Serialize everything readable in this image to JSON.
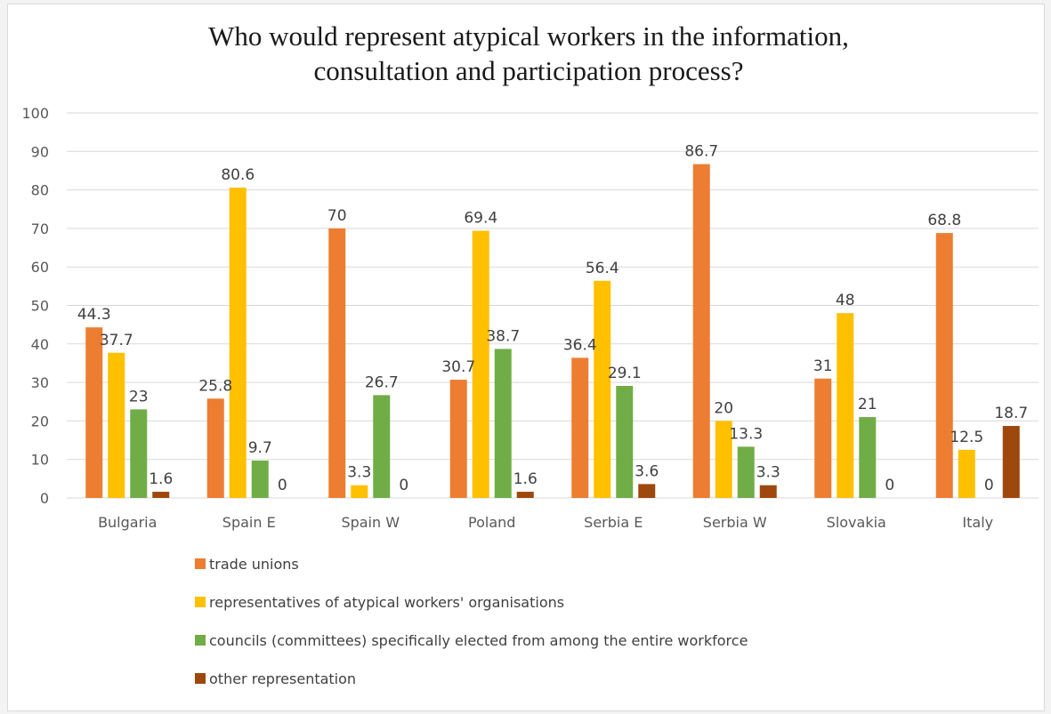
{
  "chart_data": {
    "type": "bar",
    "title": "Who would represent atypical workers in the information, consultation and participation process?",
    "title_lines": [
      "Who would represent atypical workers in the information,",
      "consultation and participation process?"
    ],
    "categories": [
      "Bulgaria",
      "Spain E",
      "Spain W",
      "Poland",
      "Serbia E",
      "Serbia W",
      "Slovakia",
      "Italy"
    ],
    "series": [
      {
        "name": "trade unions",
        "color": "#ed7d31",
        "values": [
          44.3,
          25.8,
          70,
          30.7,
          36.4,
          86.7,
          31,
          68.8
        ]
      },
      {
        "name": "representatives of atypical workers' organisations",
        "color": "#ffc000",
        "values": [
          37.7,
          80.6,
          3.3,
          69.4,
          56.4,
          20,
          48,
          12.5
        ]
      },
      {
        "name": "councils (committees) specifically elected from among the entire workforce",
        "color": "#70ad47",
        "values": [
          23,
          9.7,
          26.7,
          38.7,
          29.1,
          13.3,
          21,
          0
        ]
      },
      {
        "name": "other representation",
        "color": "#9e480e",
        "values": [
          1.6,
          0,
          0,
          1.6,
          3.6,
          3.3,
          0,
          18.7
        ]
      }
    ],
    "ylim": [
      0,
      100
    ],
    "yticks": [
      0,
      10,
      20,
      30,
      40,
      50,
      60,
      70,
      80,
      90,
      100
    ],
    "xlabel": "",
    "ylabel": "",
    "grid": true,
    "legend_position": "bottom"
  }
}
